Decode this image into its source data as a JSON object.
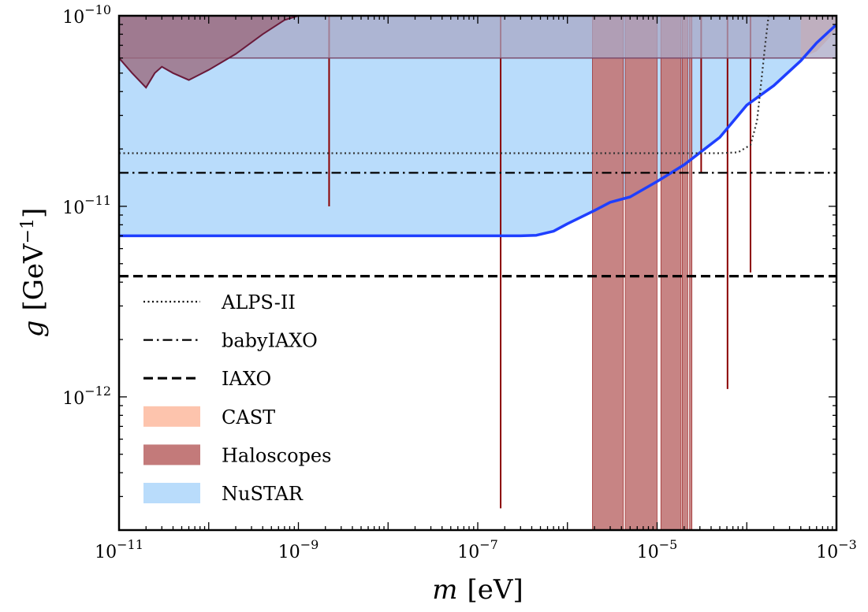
{
  "chart_data": {
    "type": "area",
    "xscale": "log",
    "yscale": "log",
    "xlim": [
      1e-11,
      0.001
    ],
    "ylim": [
      2e-13,
      1e-10
    ],
    "xlabel": {
      "var": "m",
      "unit": "[eV]"
    },
    "ylabel": {
      "var": "g",
      "unit_base": "[GeV",
      "unit_exp": "−1",
      "unit_close": "]"
    },
    "x_ticks": [
      {
        "value": 1e-11,
        "base": "10",
        "exp": "−11"
      },
      {
        "value": 1e-09,
        "base": "10",
        "exp": "−9"
      },
      {
        "value": 1e-07,
        "base": "10",
        "exp": "−7"
      },
      {
        "value": 1e-05,
        "base": "10",
        "exp": "−5"
      },
      {
        "value": 0.001,
        "base": "10",
        "exp": "−3"
      }
    ],
    "y_ticks": [
      {
        "value": 1e-12,
        "base": "10",
        "exp": "−12"
      },
      {
        "value": 1e-11,
        "base": "10",
        "exp": "−11"
      },
      {
        "value": 1e-10,
        "base": "10",
        "exp": "−10"
      }
    ],
    "colors": {
      "nustar_fill": "#b9dcfb",
      "nustar_line": "#1f3fff",
      "haloscope_fill": "#c37a7a",
      "haloscope_line": "#8b0000",
      "cast_fill": "#fdc4ad",
      "upper_band": "#a9a8c6",
      "upper_band_edge": "#7b4a6a",
      "old_excl_fill": "#9b6b80",
      "old_excl_line": "#6a1a3a",
      "limit_line": "#000000",
      "alps_line": "#333333"
    },
    "series": [
      {
        "name": "NuSTAR",
        "kind": "filled-region-below-ylim-top",
        "x": [
          1e-11,
          3e-07,
          4.5e-07,
          7e-07,
          1e-06,
          2e-06,
          3e-06,
          5e-06,
          1e-05,
          2e-05,
          5e-05,
          0.0001,
          0.0002,
          0.0004,
          0.0006,
          0.001
        ],
        "y": [
          7e-12,
          7e-12,
          7.05e-12,
          7.4e-12,
          8.1e-12,
          9.5e-12,
          1.05e-11,
          1.12e-11,
          1.35e-11,
          1.65e-11,
          2.3e-11,
          3.4e-11,
          4.3e-11,
          5.8e-11,
          7.2e-11,
          9e-11
        ]
      },
      {
        "name": "CAST",
        "kind": "filled-region-above-curve",
        "x": [
          0.0004,
          0.0006,
          0.0008,
          0.001
        ],
        "y": [
          6e-11,
          6.5e-11,
          7.5e-11,
          8.5e-11
        ]
      },
      {
        "name": "Haloscopes",
        "kind": "bands",
        "bands": [
          {
            "x0": 1.9e-06,
            "x1": 4.2e-06,
            "g_low": 2e-13
          },
          {
            "x0": 4.4e-06,
            "x1": 1e-05,
            "g_low": 2e-13
          },
          {
            "x0": 1.1e-05,
            "x1": 1.85e-05,
            "g_low": 2e-13
          },
          {
            "x0": 1.9e-05,
            "x1": 2.2e-05,
            "g_low": 2e-13
          },
          {
            "x0": 2.3e-05,
            "x1": 2.45e-05,
            "g_low": 2e-13
          }
        ],
        "spikes": [
          {
            "x": 2.2e-09,
            "g_low": 1e-11
          },
          {
            "x": 1.8e-07,
            "g_low": 2.6e-13
          },
          {
            "x": 3.1e-05,
            "g_low": 1.5e-11
          },
          {
            "x": 6.1e-05,
            "g_low": 1.1e-12
          },
          {
            "x": 0.00011,
            "g_low": 4.5e-12
          }
        ]
      },
      {
        "name": "ALPS-II",
        "kind": "dotted",
        "x": [
          1e-11,
          5e-05,
          8e-05,
          0.00011,
          0.00013,
          0.000145,
          0.00016,
          0.000175
        ],
        "y": [
          1.9e-11,
          1.9e-11,
          1.92e-11,
          2.1e-11,
          2.8e-11,
          4.5e-11,
          7e-11,
          1e-10
        ]
      },
      {
        "name": "babyIAXO",
        "kind": "dash-dot",
        "y": 1.5e-11
      },
      {
        "name": "IAXO",
        "kind": "dashed",
        "y": 4.3e-12
      }
    ],
    "upper_band": {
      "g_low": 6e-11
    },
    "old_exclusion": {
      "x": [
        1e-11,
        1.4e-11,
        2e-11,
        2.5e-11,
        3e-11,
        4e-11,
        6e-11,
        1e-10,
        2e-10,
        4e-10,
        7e-10,
        1e-09
      ],
      "y": [
        6e-11,
        5e-11,
        4.2e-11,
        5e-11,
        5.4e-11,
        5e-11,
        4.6e-11,
        5.2e-11,
        6.3e-11,
        8e-11,
        9.5e-11,
        1e-10
      ]
    },
    "legend": {
      "position": "lower-left",
      "entries": [
        {
          "label": "ALPS-II",
          "kind": "dotted"
        },
        {
          "label": "babyIAXO",
          "kind": "dash-dot"
        },
        {
          "label": "IAXO",
          "kind": "dashed"
        },
        {
          "label": "CAST",
          "kind": "patch",
          "color_key": "cast_fill"
        },
        {
          "label": "Haloscopes",
          "kind": "patch",
          "color_key": "haloscope_fill"
        },
        {
          "label": "NuSTAR",
          "kind": "patch",
          "color_key": "nustar_fill"
        }
      ]
    }
  }
}
